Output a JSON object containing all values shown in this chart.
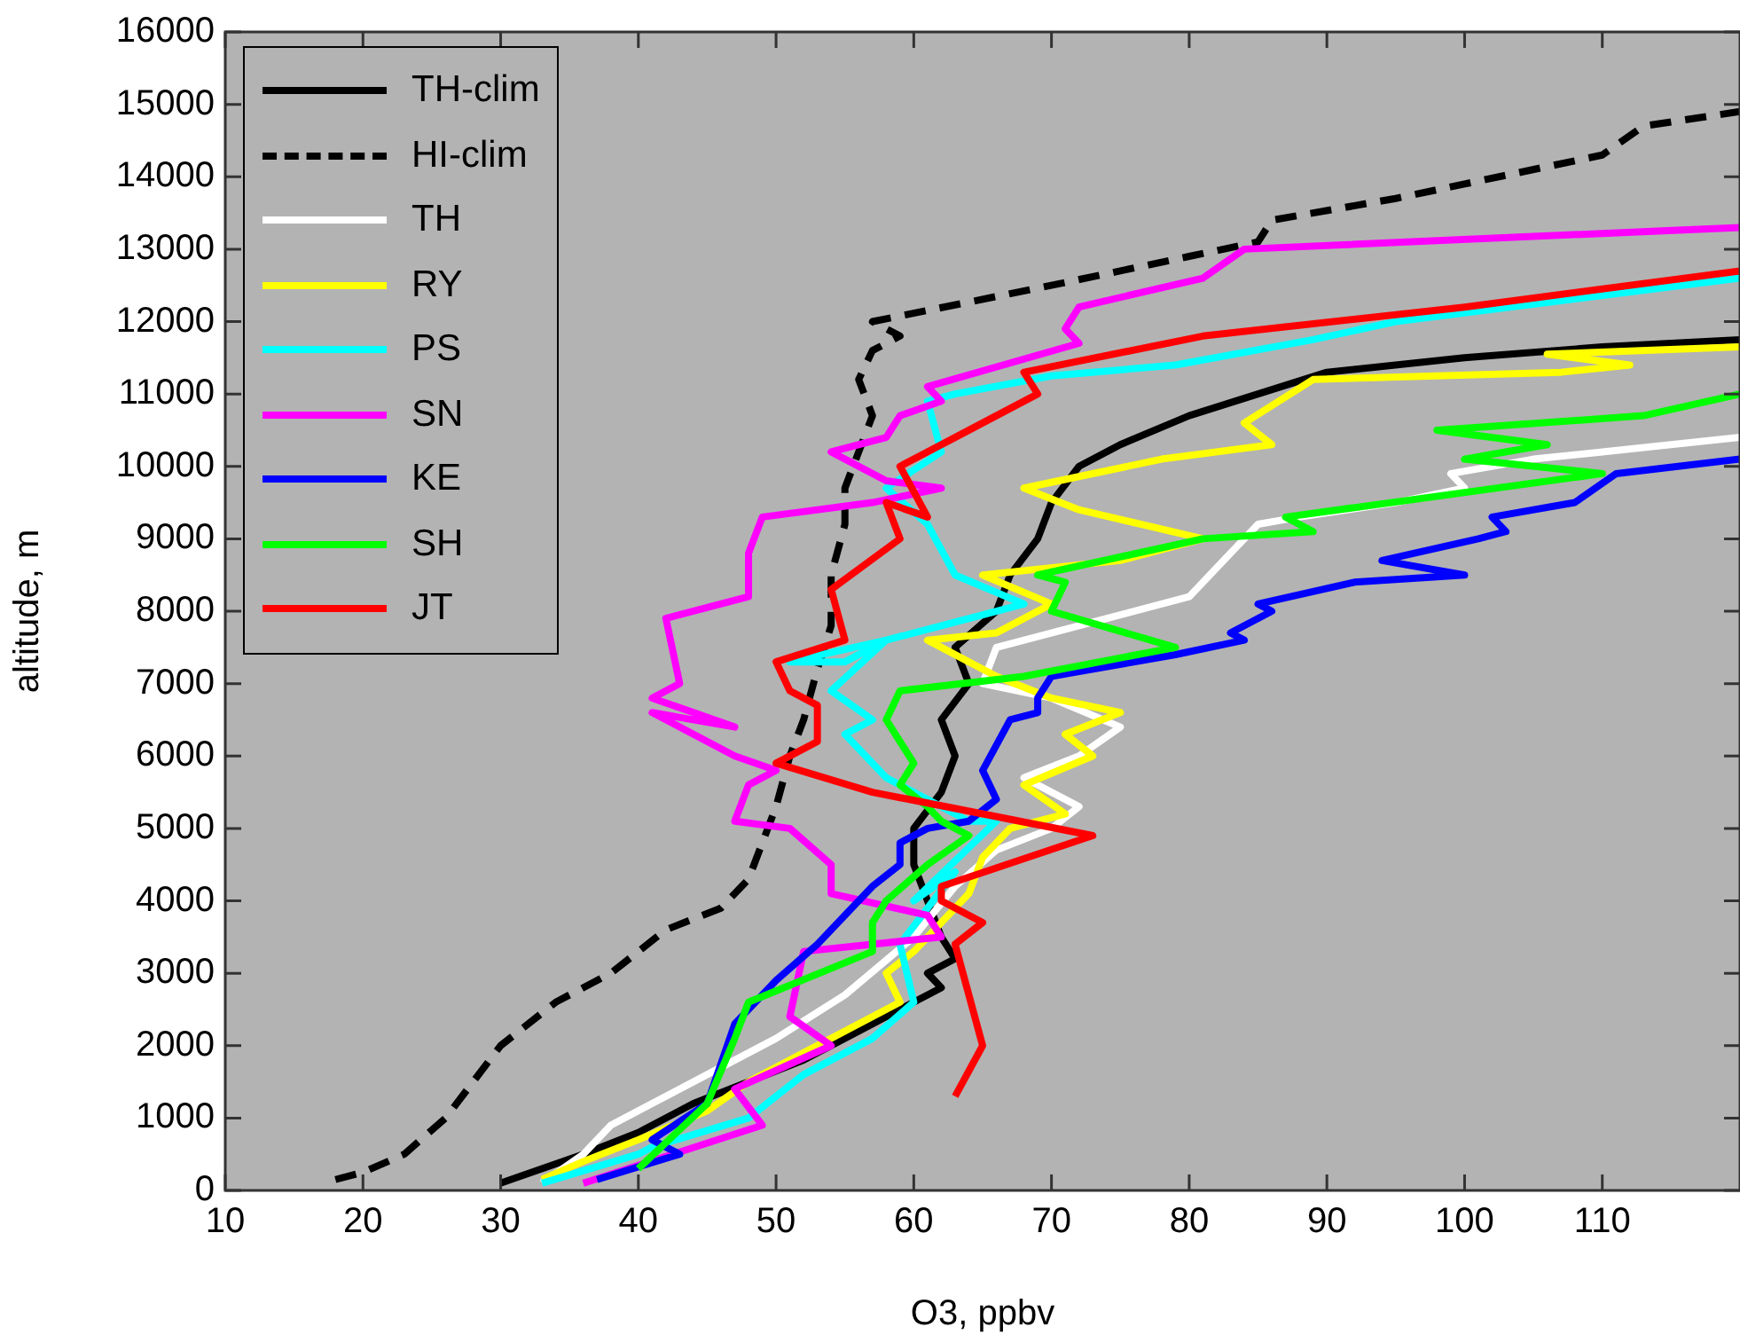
{
  "chart_data": {
    "type": "line",
    "xlabel": "O3, ppbv",
    "ylabel": "altitude, m",
    "xlim": [
      10,
      120
    ],
    "xticks": [
      10,
      20,
      30,
      40,
      50,
      60,
      70,
      80,
      90,
      100,
      110
    ],
    "ylim": [
      0,
      16000
    ],
    "yticks": [
      0,
      1000,
      2000,
      3000,
      4000,
      5000,
      6000,
      7000,
      8000,
      9000,
      10000,
      11000,
      12000,
      13000,
      14000,
      15000,
      16000
    ],
    "grid": false,
    "legend": "top left",
    "marker": "none",
    "series": [
      {
        "name": "TH-clim",
        "color": "#000000",
        "line_style": "solid",
        "x": [
          30,
          33,
          36,
          40,
          44,
          48,
          52,
          56,
          60,
          62,
          61,
          63,
          62,
          61,
          60,
          60,
          62,
          63,
          62,
          64,
          63,
          66,
          67,
          69,
          70,
          72,
          75,
          80,
          90,
          100,
          110,
          120
        ],
        "values": [
          100,
          300,
          500,
          800,
          1200,
          1500,
          1800,
          2200,
          2600,
          2800,
          3000,
          3200,
          3500,
          4000,
          4500,
          5000,
          5500,
          6000,
          6500,
          7000,
          7500,
          8000,
          8500,
          9000,
          9500,
          10000,
          10300,
          10700,
          11300,
          11500,
          11650,
          11750
        ]
      },
      {
        "name": "HI-clim",
        "color": "#000000",
        "line_style": "dashed",
        "x": [
          18,
          20,
          23,
          26,
          28,
          30,
          34,
          38,
          40,
          42,
          46,
          48,
          49,
          50,
          51,
          52,
          53,
          54,
          54,
          55,
          55,
          56,
          57,
          56,
          57,
          59,
          57,
          70,
          80,
          85,
          86,
          95,
          100,
          110,
          113,
          120
        ],
        "values": [
          150,
          250,
          500,
          1000,
          1500,
          2000,
          2600,
          3000,
          3300,
          3600,
          3900,
          4300,
          4800,
          5300,
          6000,
          6500,
          7200,
          7800,
          8500,
          9200,
          9700,
          10200,
          10700,
          11200,
          11600,
          11800,
          12000,
          12500,
          12900,
          13100,
          13400,
          13700,
          13900,
          14300,
          14700,
          14900
        ]
      },
      {
        "name": "TH",
        "color": "#ffffff",
        "line_style": "solid",
        "x": [
          33,
          36,
          38,
          41,
          45,
          50,
          55,
          60,
          63,
          66,
          70,
          72,
          68,
          72,
          75,
          70,
          65,
          66,
          72,
          80,
          82,
          85,
          88,
          95,
          100,
          99,
          105,
          110,
          120
        ],
        "values": [
          100,
          500,
          900,
          1200,
          1600,
          2100,
          2700,
          3500,
          4200,
          4700,
          5000,
          5300,
          5700,
          6000,
          6400,
          6800,
          7000,
          7500,
          7800,
          8200,
          8600,
          9200,
          9300,
          9500,
          9700,
          9900,
          10100,
          10200,
          10400
        ]
      },
      {
        "name": "RY",
        "color": "#ffff00",
        "line_style": "solid",
        "x": [
          33,
          36,
          40,
          45,
          48,
          52,
          56,
          59,
          58,
          60,
          62,
          64,
          65,
          67,
          71,
          68,
          73,
          71,
          75,
          70,
          66,
          61,
          66,
          70,
          65,
          75,
          81,
          72,
          68,
          78,
          86,
          84,
          89,
          107,
          112,
          106,
          120
        ],
        "values": [
          150,
          400,
          700,
          1100,
          1500,
          1900,
          2300,
          2600,
          3000,
          3300,
          3700,
          4100,
          4600,
          5000,
          5200,
          5600,
          6000,
          6300,
          6600,
          6800,
          7100,
          7600,
          7700,
          8100,
          8500,
          8700,
          9000,
          9400,
          9700,
          10100,
          10300,
          10600,
          11200,
          11300,
          11400,
          11550,
          11650
        ]
      },
      {
        "name": "PS",
        "color": "#00ffff",
        "line_style": "solid",
        "x": [
          33,
          40,
          41,
          48,
          52,
          57,
          60,
          59,
          63,
          60,
          66,
          64,
          58,
          55,
          57,
          54,
          58,
          55,
          51,
          58,
          68,
          63,
          61,
          58,
          62,
          61,
          63,
          70,
          79,
          89,
          95,
          120
        ],
        "values": [
          100,
          500,
          600,
          1000,
          1600,
          2100,
          2600,
          3400,
          4400,
          4000,
          5100,
          5100,
          5700,
          6300,
          6500,
          6900,
          7600,
          7300,
          7300,
          7600,
          8100,
          8500,
          9200,
          9700,
          10200,
          10900,
          11000,
          11250,
          11400,
          11750,
          12000,
          12600
        ]
      },
      {
        "name": "SN",
        "color": "#ff00ff",
        "line_style": "solid",
        "x": [
          36,
          49,
          47,
          54,
          51,
          52,
          62,
          61,
          54,
          54,
          51,
          47,
          48,
          50,
          47,
          41,
          47,
          41,
          43,
          42,
          48,
          48,
          49,
          57,
          62,
          58,
          54,
          58,
          59,
          62,
          61,
          72,
          71,
          72,
          81,
          84,
          120
        ],
        "values": [
          100,
          900,
          1400,
          2000,
          2400,
          3300,
          3500,
          3800,
          4100,
          4500,
          5000,
          5100,
          5600,
          5800,
          6000,
          6600,
          6400,
          6800,
          7000,
          7900,
          8200,
          8800,
          9300,
          9500,
          9700,
          9800,
          10200,
          10400,
          10700,
          10900,
          11100,
          11700,
          11900,
          12200,
          12600,
          13000,
          13300
        ]
      },
      {
        "name": "KE",
        "color": "#0000ff",
        "line_style": "solid",
        "x": [
          37,
          43,
          41,
          45,
          47,
          50,
          53,
          57,
          59,
          59,
          61,
          64,
          66,
          65,
          67,
          69,
          69,
          70,
          79,
          84,
          83,
          86,
          85,
          92,
          100,
          94,
          101,
          103,
          102,
          108,
          111,
          120
        ],
        "values": [
          150,
          500,
          700,
          1200,
          2300,
          2900,
          3400,
          4200,
          4500,
          4800,
          5000,
          5100,
          5400,
          5800,
          6500,
          6600,
          6800,
          7100,
          7400,
          7600,
          7700,
          8000,
          8100,
          8400,
          8500,
          8700,
          9000,
          9100,
          9300,
          9500,
          9900,
          10100
        ]
      },
      {
        "name": "SH",
        "color": "#00ff00",
        "line_style": "solid",
        "x": [
          40,
          45,
          47,
          48,
          57,
          57,
          58,
          61,
          64,
          62,
          61,
          59,
          60,
          58,
          59,
          68,
          79,
          70,
          71,
          69,
          81,
          89,
          87,
          110,
          100,
          106,
          98,
          113,
          120
        ],
        "values": [
          300,
          1200,
          2100,
          2600,
          3300,
          3700,
          4000,
          4500,
          4900,
          5100,
          5300,
          5600,
          5900,
          6500,
          6900,
          7100,
          7500,
          8000,
          8400,
          8500,
          9000,
          9100,
          9300,
          9900,
          10100,
          10300,
          10500,
          10700,
          11000
        ]
      },
      {
        "name": "JT",
        "color": "#ff0000",
        "line_style": "solid",
        "x": [
          63,
          65,
          64,
          63,
          65,
          62,
          62,
          73,
          57,
          50,
          53,
          53,
          51,
          50,
          55,
          54,
          59,
          58,
          61,
          59,
          63,
          69,
          68,
          81,
          100,
          120
        ],
        "values": [
          1300,
          2000,
          2700,
          3400,
          3700,
          4000,
          4200,
          4900,
          5500,
          5900,
          6200,
          6700,
          6900,
          7300,
          7600,
          8300,
          9000,
          9500,
          9300,
          10000,
          10400,
          11000,
          11300,
          11800,
          12200,
          12700
        ]
      }
    ]
  }
}
